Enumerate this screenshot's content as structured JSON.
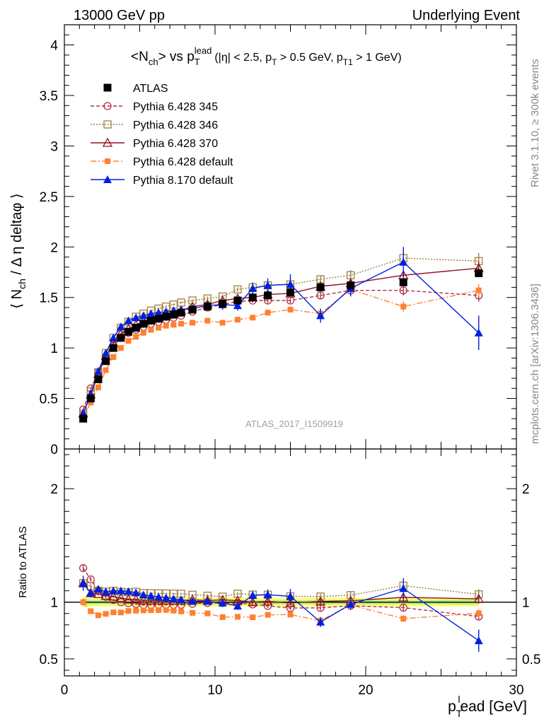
{
  "header": {
    "left": "13000 GeV pp",
    "right": "Underlying Event"
  },
  "side_labels": {
    "rivet": "Rivet 3.1.10, ≥ 300k events",
    "mcplots": "mcplots.cern.ch [arXiv:1306.3436]"
  },
  "watermark": "ATLAS_2017_I1509919",
  "colors": {
    "atlas": "#000000",
    "p345": "#b03048",
    "p346": "#a08040",
    "p370": "#901020",
    "p6def": "#ff8030",
    "p8def": "#0020e0",
    "band_outer": "#ffff80",
    "band_inner": "#b8f080"
  },
  "chart_data": [
    {
      "type": "scatter",
      "title": "<N_ch> vs p_T^lead (|η| < 2.5, p_T > 0.5 GeV, p_T1 > 1 GeV)",
      "ylabel": "⟨ N_ch / Δη deltaφ ⟩",
      "xlim": [
        0,
        30
      ],
      "ylim": [
        0,
        4.2
      ],
      "y_ticks": [
        0,
        0.5,
        1,
        1.5,
        2,
        2.5,
        3,
        3.5,
        4
      ],
      "legend_position": "top-left",
      "x": [
        1.25,
        1.75,
        2.25,
        2.75,
        3.25,
        3.75,
        4.25,
        4.75,
        5.25,
        5.75,
        6.25,
        6.75,
        7.25,
        7.75,
        8.5,
        9.5,
        10.5,
        11.5,
        12.5,
        13.5,
        15.0,
        17.0,
        19.0,
        22.5,
        27.5
      ],
      "series": [
        {
          "name": "ATLAS",
          "key": "atlas",
          "marker": "square-filled",
          "line": "none",
          "values": [
            0.3,
            0.5,
            0.69,
            0.87,
            1.0,
            1.1,
            1.16,
            1.2,
            1.24,
            1.27,
            1.29,
            1.31,
            1.33,
            1.35,
            1.38,
            1.41,
            1.44,
            1.47,
            1.5,
            1.52,
            1.55,
            1.6,
            1.62,
            1.65,
            1.74
          ],
          "errors": [
            0.01,
            0.01,
            0.01,
            0.01,
            0.01,
            0.01,
            0.01,
            0.01,
            0.01,
            0.01,
            0.01,
            0.01,
            0.01,
            0.01,
            0.01,
            0.01,
            0.01,
            0.01,
            0.01,
            0.01,
            0.02,
            0.02,
            0.02,
            0.03,
            0.04
          ]
        },
        {
          "name": "Pythia 6.428 345",
          "key": "p345",
          "marker": "circle-open",
          "line": "dashed",
          "values": [
            0.39,
            0.6,
            0.76,
            0.91,
            1.02,
            1.1,
            1.15,
            1.18,
            1.21,
            1.24,
            1.26,
            1.28,
            1.3,
            1.32,
            1.36,
            1.4,
            1.43,
            1.46,
            1.47,
            1.47,
            1.47,
            1.52,
            1.57,
            1.57,
            1.52
          ],
          "errors": [
            0.01,
            0.01,
            0.01,
            0.01,
            0.01,
            0.01,
            0.01,
            0.01,
            0.01,
            0.01,
            0.01,
            0.01,
            0.01,
            0.01,
            0.01,
            0.02,
            0.02,
            0.02,
            0.02,
            0.03,
            0.03,
            0.04,
            0.05,
            0.05,
            0.06
          ]
        },
        {
          "name": "Pythia 6.428 346",
          "key": "p346",
          "marker": "square-open",
          "line": "dotted",
          "values": [
            0.35,
            0.57,
            0.76,
            0.95,
            1.1,
            1.2,
            1.26,
            1.31,
            1.34,
            1.37,
            1.39,
            1.41,
            1.43,
            1.45,
            1.47,
            1.49,
            1.51,
            1.58,
            1.6,
            1.62,
            1.63,
            1.68,
            1.72,
            1.89,
            1.86
          ],
          "errors": [
            0.01,
            0.01,
            0.01,
            0.01,
            0.01,
            0.01,
            0.01,
            0.01,
            0.01,
            0.01,
            0.01,
            0.01,
            0.01,
            0.01,
            0.01,
            0.02,
            0.02,
            0.02,
            0.02,
            0.03,
            0.03,
            0.04,
            0.05,
            0.06,
            0.08
          ]
        },
        {
          "name": "Pythia 6.428 370",
          "key": "p370",
          "marker": "triangle-open",
          "line": "solid",
          "values": [
            0.35,
            0.54,
            0.74,
            0.92,
            1.05,
            1.14,
            1.19,
            1.23,
            1.26,
            1.29,
            1.31,
            1.33,
            1.35,
            1.37,
            1.41,
            1.43,
            1.47,
            1.49,
            1.5,
            1.53,
            1.54,
            1.61,
            1.64,
            1.72,
            1.79
          ],
          "errors": [
            0.01,
            0.01,
            0.01,
            0.01,
            0.01,
            0.01,
            0.01,
            0.01,
            0.01,
            0.01,
            0.01,
            0.01,
            0.01,
            0.01,
            0.01,
            0.02,
            0.02,
            0.02,
            0.02,
            0.03,
            0.03,
            0.04,
            0.05,
            0.06,
            0.07
          ]
        },
        {
          "name": "Pythia 6.428 default",
          "key": "p6def",
          "marker": "square-filled-small",
          "line": "dashdot",
          "values": [
            0.3,
            0.46,
            0.61,
            0.78,
            0.91,
            1.0,
            1.07,
            1.11,
            1.15,
            1.18,
            1.2,
            1.22,
            1.23,
            1.24,
            1.25,
            1.27,
            1.25,
            1.28,
            1.3,
            1.35,
            1.38,
            1.34,
            1.58,
            1.41,
            1.57
          ],
          "errors": [
            0.01,
            0.01,
            0.01,
            0.01,
            0.01,
            0.01,
            0.01,
            0.01,
            0.01,
            0.01,
            0.01,
            0.01,
            0.01,
            0.01,
            0.01,
            0.02,
            0.02,
            0.02,
            0.02,
            0.03,
            0.03,
            0.04,
            0.04,
            0.05,
            0.06
          ]
        },
        {
          "name": "Pythia 8.170 default",
          "key": "p8def",
          "marker": "triangle-filled",
          "line": "solid",
          "values": [
            0.35,
            0.54,
            0.77,
            0.95,
            1.1,
            1.21,
            1.27,
            1.3,
            1.32,
            1.34,
            1.35,
            1.36,
            1.37,
            1.38,
            1.39,
            1.42,
            1.43,
            1.42,
            1.59,
            1.62,
            1.63,
            1.32,
            1.59,
            1.85,
            1.15
          ],
          "errors": [
            0.02,
            0.02,
            0.02,
            0.02,
            0.02,
            0.02,
            0.02,
            0.02,
            0.02,
            0.02,
            0.02,
            0.03,
            0.03,
            0.03,
            0.03,
            0.04,
            0.05,
            0.05,
            0.06,
            0.07,
            0.1,
            0.07,
            0.08,
            0.15,
            0.17
          ]
        }
      ]
    },
    {
      "type": "scatter",
      "ylabel": "Ratio to ATLAS",
      "xlabel": "p_T^lead [GeV]",
      "xlim": [
        0,
        30
      ],
      "ylim": [
        0.35,
        2.35
      ],
      "y_ticks": [
        0.5,
        1,
        2
      ],
      "x_ticks": [
        0,
        10,
        20,
        30
      ],
      "band": {
        "inner": 0.02,
        "outer": 0.04
      },
      "reference": 1.0
    }
  ]
}
